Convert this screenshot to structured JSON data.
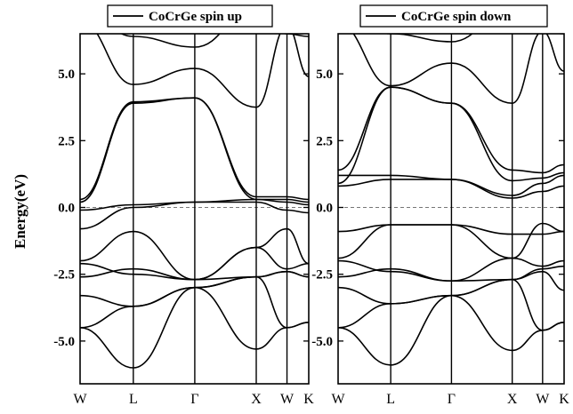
{
  "chart_data": [
    {
      "type": "line",
      "legend": "CoCrGe spin up",
      "ylabel": "Energy(eV)",
      "ylim": [
        -6.6,
        6.5
      ],
      "yticks": [
        "5.0",
        "2.5",
        "0.0",
        "-2.5",
        "-5.0"
      ],
      "ytick_values": [
        5.0,
        2.5,
        0.0,
        -2.5,
        -5.0
      ],
      "kpath": [
        "W",
        "L",
        "Γ",
        "X",
        "W",
        "K"
      ],
      "kpath_positions": [
        0.0,
        0.866,
        1.866,
        2.866,
        3.366,
        3.72
      ],
      "fermi_level": 0.0,
      "series": [
        {
          "x": [
            0,
            0.866,
            1.866,
            2.866,
            3.366,
            3.72
          ],
          "values": [
            -4.5,
            -6.0,
            -3.0,
            -5.3,
            -4.5,
            -4.3
          ]
        },
        {
          "x": [
            0,
            0.866,
            1.866,
            2.866,
            3.366,
            3.72
          ],
          "values": [
            -4.5,
            -3.7,
            -3.0,
            -2.6,
            -4.5,
            -4.3
          ]
        },
        {
          "x": [
            0,
            0.866,
            1.866,
            2.866,
            3.366,
            3.72
          ],
          "values": [
            -3.3,
            -3.7,
            -3.0,
            -2.6,
            -2.4,
            -2.6
          ]
        },
        {
          "x": [
            0,
            0.866,
            1.866,
            2.866,
            3.366,
            3.72
          ],
          "values": [
            -2.6,
            -2.3,
            -2.7,
            -2.6,
            -2.4,
            -2.6
          ]
        },
        {
          "x": [
            0,
            0.866,
            1.866,
            2.866,
            3.366,
            3.72
          ],
          "values": [
            -2.1,
            -2.5,
            -2.7,
            -1.5,
            -2.3,
            -2.1
          ]
        },
        {
          "x": [
            0,
            0.866,
            1.866,
            2.866,
            3.366,
            3.72
          ],
          "values": [
            -2.0,
            -0.9,
            -2.7,
            -1.5,
            -0.8,
            -2.1
          ]
        },
        {
          "x": [
            0,
            0.866,
            1.866,
            2.866,
            3.366,
            3.72
          ],
          "values": [
            -0.8,
            0.0,
            0.2,
            0.2,
            -0.1,
            -0.2
          ]
        },
        {
          "x": [
            0,
            0.866,
            1.866,
            2.866,
            3.366,
            3.72
          ],
          "values": [
            -0.1,
            0.1,
            0.2,
            0.3,
            0.2,
            0.1
          ]
        },
        {
          "x": [
            0,
            0.866,
            1.866,
            2.866,
            3.366,
            3.72
          ],
          "values": [
            0.3,
            3.95,
            4.1,
            0.3,
            0.3,
            0.2
          ]
        },
        {
          "x": [
            0,
            0.866,
            1.866,
            2.866,
            3.366,
            3.72
          ],
          "values": [
            0.2,
            3.9,
            4.1,
            0.4,
            0.4,
            0.3
          ]
        },
        {
          "x": [
            0,
            0.866,
            1.866,
            2.866,
            3.366,
            3.72
          ],
          "values": [
            7.0,
            4.6,
            5.2,
            3.75,
            6.8,
            4.9
          ]
        },
        {
          "x": [
            0,
            0.866,
            1.866,
            2.866,
            3.366,
            3.72
          ],
          "values": [
            7.5,
            6.4,
            6.0,
            7.5,
            6.5,
            6.4
          ]
        }
      ]
    },
    {
      "type": "line",
      "legend": "CoCrGe spin down",
      "ylabel": "",
      "ylim": [
        -6.6,
        6.5
      ],
      "yticks": [
        "5.0",
        "2.5",
        "0.0",
        "-2.5",
        "-5.0"
      ],
      "ytick_values": [
        5.0,
        2.5,
        0.0,
        -2.5,
        -5.0
      ],
      "kpath": [
        "W",
        "L",
        "Γ",
        "X",
        "W",
        "K"
      ],
      "kpath_positions": [
        0.0,
        0.866,
        1.866,
        2.866,
        3.366,
        3.72
      ],
      "fermi_level": 0.0,
      "series": [
        {
          "x": [
            0,
            0.866,
            1.866,
            2.866,
            3.366,
            3.72
          ],
          "values": [
            -4.5,
            -5.9,
            -3.3,
            -5.35,
            -4.6,
            -4.3
          ]
        },
        {
          "x": [
            0,
            0.866,
            1.866,
            2.866,
            3.366,
            3.72
          ],
          "values": [
            -4.5,
            -3.6,
            -3.3,
            -2.7,
            -4.6,
            -4.3
          ]
        },
        {
          "x": [
            0,
            0.866,
            1.866,
            2.866,
            3.366,
            3.72
          ],
          "values": [
            -3.0,
            -3.6,
            -3.3,
            -2.7,
            -2.4,
            -3.1
          ]
        },
        {
          "x": [
            0,
            0.866,
            1.866,
            2.866,
            3.366,
            3.72
          ],
          "values": [
            -2.6,
            -2.3,
            -2.75,
            -2.7,
            -2.3,
            -2.2
          ]
        },
        {
          "x": [
            0,
            0.866,
            1.866,
            2.866,
            3.366,
            3.72
          ],
          "values": [
            -2.0,
            -2.4,
            -2.75,
            -1.9,
            -2.2,
            -2.0
          ]
        },
        {
          "x": [
            0,
            0.866,
            1.866,
            2.866,
            3.366,
            3.72
          ],
          "values": [
            -1.9,
            -0.65,
            -0.65,
            -1.9,
            -0.6,
            -0.9
          ]
        },
        {
          "x": [
            0,
            0.866,
            1.866,
            2.866,
            3.366,
            3.72
          ],
          "values": [
            -0.9,
            -0.65,
            -0.65,
            -1.0,
            -1.0,
            -0.9
          ]
        },
        {
          "x": [
            0,
            0.866,
            1.866,
            2.866,
            3.366,
            3.72
          ],
          "values": [
            0.8,
            1.05,
            1.05,
            0.35,
            0.6,
            0.8
          ]
        },
        {
          "x": [
            0,
            0.866,
            1.866,
            2.866,
            3.366,
            3.72
          ],
          "values": [
            1.2,
            1.2,
            1.05,
            0.45,
            0.9,
            1.2
          ]
        },
        {
          "x": [
            0,
            0.866,
            1.866,
            2.866,
            3.366,
            3.72
          ],
          "values": [
            1.4,
            4.5,
            3.9,
            1.0,
            1.1,
            1.3
          ]
        },
        {
          "x": [
            0,
            0.866,
            1.866,
            2.866,
            3.366,
            3.72
          ],
          "values": [
            0.9,
            4.5,
            3.9,
            1.4,
            1.3,
            1.6
          ]
        },
        {
          "x": [
            0,
            0.866,
            1.866,
            2.866,
            3.366,
            3.72
          ],
          "values": [
            6.9,
            4.55,
            5.4,
            3.9,
            6.6,
            5.1
          ]
        },
        {
          "x": [
            0,
            0.866,
            1.866,
            2.866,
            3.366,
            3.72
          ],
          "values": [
            7.5,
            6.5,
            6.2,
            7.5,
            6.6,
            6.5
          ]
        }
      ]
    }
  ]
}
